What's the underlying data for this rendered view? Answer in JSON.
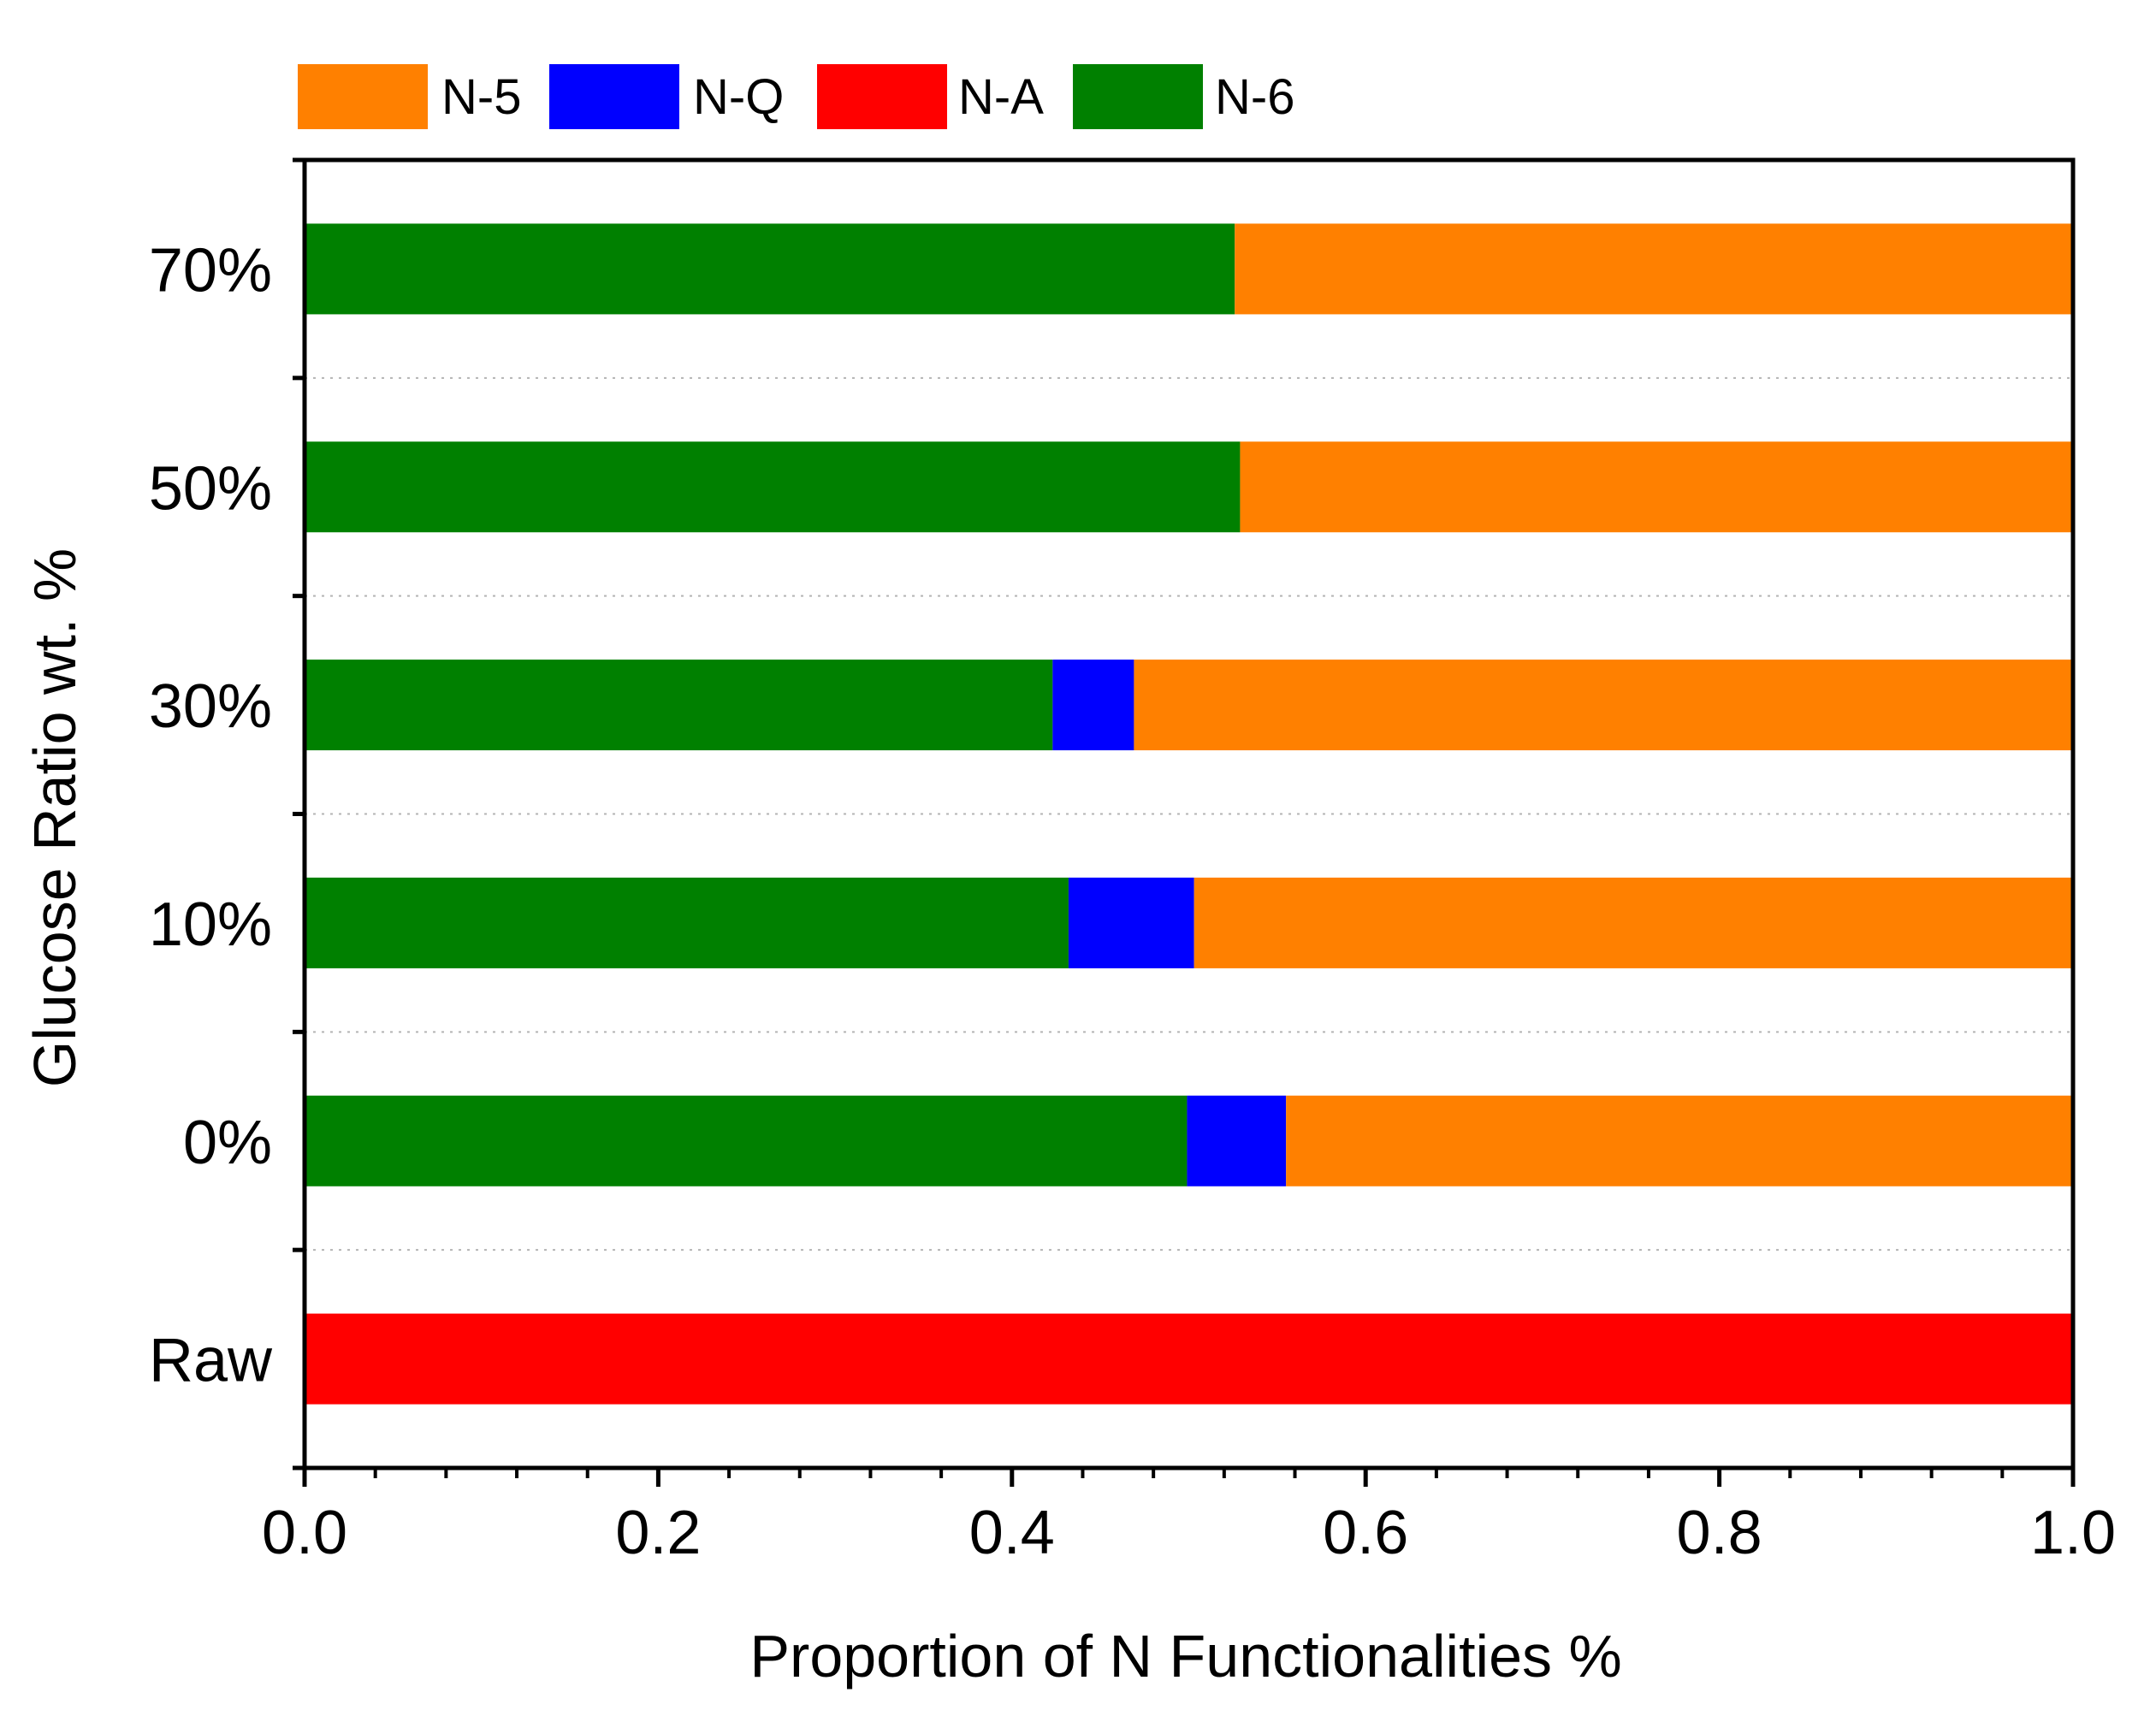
{
  "chart_data": {
    "type": "bar",
    "orientation": "horizontal",
    "stacked": true,
    "title": "",
    "xlabel": "Proportion of N Functionalities %",
    "ylabel": "Glucose Ratio wt. %",
    "xlim": [
      0.0,
      1.0
    ],
    "x_ticks": [
      "0.0",
      "0.2",
      "0.4",
      "0.6",
      "0.8",
      "1.0"
    ],
    "x_tick_values": [
      0.0,
      0.2,
      0.4,
      0.6,
      0.8,
      1.0
    ],
    "categories": [
      "Raw",
      "0%",
      "10%",
      "30%",
      "50%",
      "70%"
    ],
    "stack_order": [
      "N-6",
      "N-Q",
      "N-A",
      "N-5"
    ],
    "series": [
      {
        "name": "N-5",
        "color": "#FF8000",
        "values": [
          0.0,
          0.445,
          0.497,
          0.531,
          0.471,
          0.474
        ]
      },
      {
        "name": "N-Q",
        "color": "#0000FF",
        "values": [
          0.0,
          0.056,
          0.071,
          0.046,
          0.0,
          0.0
        ]
      },
      {
        "name": "N-A",
        "color": "#FF0000",
        "values": [
          1.0,
          0.0,
          0.0,
          0.0,
          0.0,
          0.0
        ]
      },
      {
        "name": "N-6",
        "color": "#008000",
        "values": [
          0.0,
          0.499,
          0.432,
          0.423,
          0.529,
          0.526
        ]
      }
    ],
    "legend": {
      "position": "top-left",
      "order": [
        "N-5",
        "N-Q",
        "N-A",
        "N-6"
      ]
    },
    "grid": {
      "x": false,
      "y": "dotted between categories"
    }
  }
}
